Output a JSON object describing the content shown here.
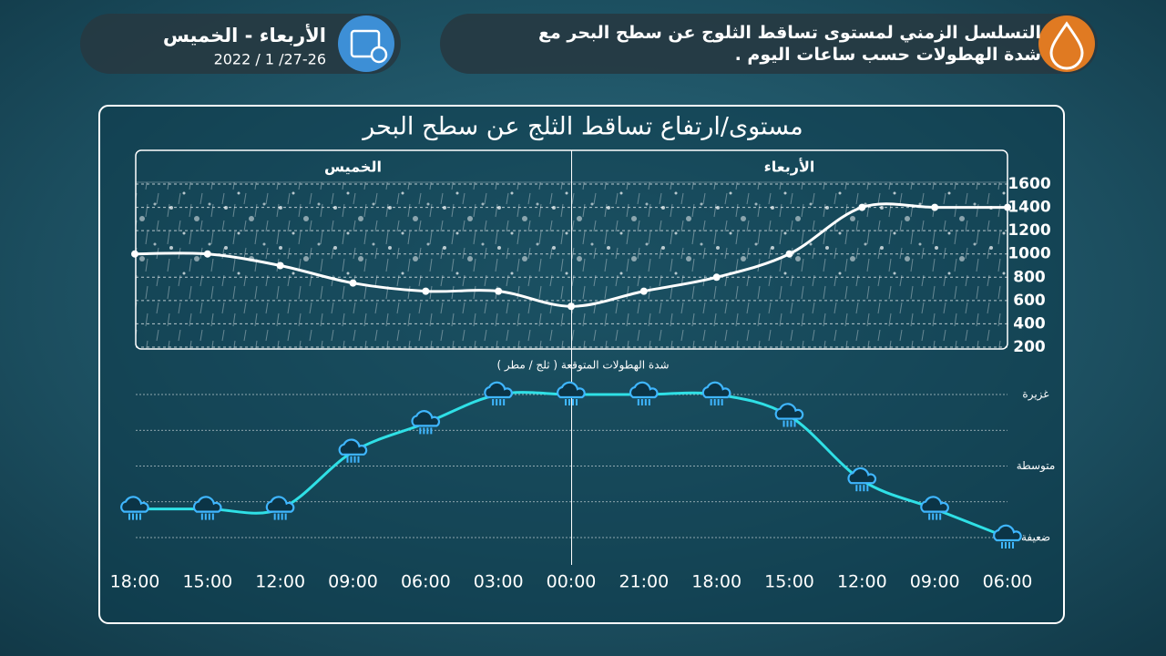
{
  "header": {
    "title": "التسلسل الزمني لمستوى تساقط الثلوج عن سطح البحر مع شدة الهطولات حسب ساعات اليوم .",
    "days": "الأربعاء - الخميس",
    "date": "2022 / 1 /27-26"
  },
  "chart_data": [
    {
      "type": "line",
      "title": "مستوى/ارتفاع تساقط الثلج عن سطح البحر",
      "categories": [
        "06:00",
        "09:00",
        "12:00",
        "15:00",
        "18:00",
        "21:00",
        "00:00",
        "03:00",
        "06:00",
        "09:00",
        "12:00",
        "15:00",
        "18:00"
      ],
      "periods": [
        "الأربعاء",
        "الخميس"
      ],
      "values": [
        1400,
        1400,
        1400,
        1000,
        800,
        680,
        550,
        680,
        680,
        750,
        900,
        1000,
        1000
      ],
      "color": "#ffffff",
      "ylim": [
        200,
        1600
      ],
      "yticks": [
        200,
        400,
        600,
        800,
        1000,
        1200,
        1400,
        1600
      ],
      "grid": true
    },
    {
      "type": "line",
      "title": "شدة الهطولات المتوقعة ( ثلج / مطر )",
      "values": [
        1.0,
        1.4,
        1.8,
        2.7,
        3.0,
        3.0,
        3.0,
        3.0,
        2.6,
        2.2,
        1.4,
        1.4,
        1.4
      ],
      "color": "#2fe0e6",
      "ylim": [
        1,
        3
      ],
      "yticks": [
        {
          "value": 1,
          "label": "ضعيفة"
        },
        {
          "value": 2,
          "label": "متوسطة"
        },
        {
          "value": 3,
          "label": "غزيرة"
        }
      ],
      "minor_yticks": [
        1.5,
        2.5
      ],
      "grid": true
    }
  ]
}
